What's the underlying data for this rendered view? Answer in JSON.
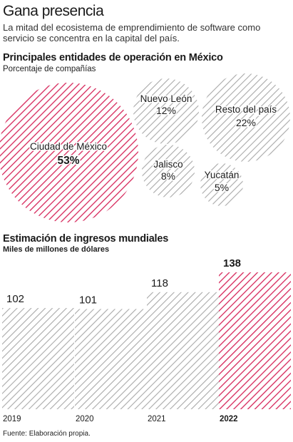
{
  "header": {
    "title": "Gana presencia",
    "subtitle": "La mitad del ecosistema de emprendimiento de software como servicio se concentra en la capital del país."
  },
  "section1": {
    "title": "Principales entidades de operación en México",
    "subtitle": "Porcentaje de compañías"
  },
  "section2": {
    "title": "Estimación de ingresos  mundiales",
    "subtitle": "Miles de millones de dólares"
  },
  "source": "Fuente: Elaboración propia.",
  "colors": {
    "highlight": "#d6265a",
    "neutral": "#a9a9a9",
    "background": "#ffffff"
  },
  "chart_data": [
    {
      "type": "bubble",
      "title": "Principales entidades de operación en México",
      "subtitle": "Porcentaje de compañías",
      "series": [
        {
          "name": "Ciudad de México",
          "value": 53,
          "label": "53%",
          "highlight": true
        },
        {
          "name": "Nuevo León",
          "value": 12,
          "label": "12%",
          "highlight": false
        },
        {
          "name": "Resto del país",
          "value": 22,
          "label": "22%",
          "highlight": false
        },
        {
          "name": "Jalisco",
          "value": 8,
          "label": "8%",
          "highlight": false
        },
        {
          "name": "Yucatán",
          "value": 5,
          "label": "5%",
          "highlight": false
        }
      ]
    },
    {
      "type": "bar",
      "title": "Estimación de ingresos  mundiales",
      "subtitle": "Miles de millones de dólares",
      "categories": [
        "2019",
        "2020",
        "2021",
        "2022"
      ],
      "values": [
        102,
        101,
        118,
        138
      ],
      "value_labels": [
        "102",
        "101",
        "118",
        "138"
      ],
      "highlight_index": 3,
      "ylim": [
        0,
        138
      ]
    }
  ]
}
